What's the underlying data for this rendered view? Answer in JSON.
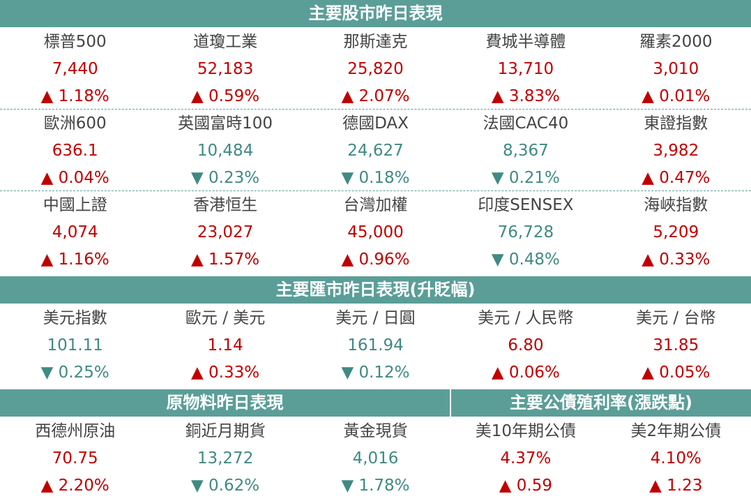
{
  "stocks": {
    "title": "主要股市昨日表現",
    "rows": [
      [
        {
          "name": "標普500",
          "value": "7,440",
          "change": "▲ 1.18%",
          "color": "#c00000"
        },
        {
          "name": "道瓊工業",
          "value": "52,183",
          "change": "▲ 0.59%",
          "color": "#c00000"
        },
        {
          "name": "那斯達克",
          "value": "25,820",
          "change": "▲ 2.07%",
          "color": "#c00000"
        },
        {
          "name": "費城半導體",
          "value": "13,710",
          "change": "▲ 3.83%",
          "color": "#c00000"
        },
        {
          "name": "羅素2000",
          "value": "3,010",
          "change": "▲ 0.01%",
          "color": "#c00000"
        }
      ],
      [
        {
          "name": "歐洲600",
          "value": "636.1",
          "change": "▲ 0.04%",
          "color": "#c00000"
        },
        {
          "name": "英國富時100",
          "value": "10,484",
          "change": "▼ 0.23%",
          "color": "#3f8a83"
        },
        {
          "name": "德國DAX",
          "value": "24,627",
          "change": "▼ 0.18%",
          "color": "#3f8a83"
        },
        {
          "name": "法國CAC40",
          "value": "8,367",
          "change": "▼ 0.21%",
          "color": "#3f8a83"
        },
        {
          "name": "東證指數",
          "value": "3,982",
          "change": "▲ 0.47%",
          "color": "#c00000"
        }
      ],
      [
        {
          "name": "中國上證",
          "value": "4,074",
          "change": "▲ 1.16%",
          "color": "#c00000"
        },
        {
          "name": "香港恒生",
          "value": "23,027",
          "change": "▲ 1.57%",
          "color": "#c00000"
        },
        {
          "name": "台灣加權",
          "value": "45,000",
          "change": "▲ 0.96%",
          "color": "#c00000"
        },
        {
          "name": "印度SENSEX",
          "value": "76,728",
          "change": "▼ 0.48%",
          "color": "#3f8a83"
        },
        {
          "name": "海峽指數",
          "value": "5,209",
          "change": "▲ 0.33%",
          "color": "#c00000"
        }
      ]
    ]
  },
  "fx": {
    "title": "主要匯市昨日表現(升貶幅)",
    "rows": [
      [
        {
          "name": "美元指數",
          "value": "101.11",
          "change": "▼ 0.25%",
          "color": "#3f8a83"
        },
        {
          "name": "歐元 / 美元",
          "value": "1.14",
          "change": "▲ 0.33%",
          "color": "#c00000"
        },
        {
          "name": "美元 / 日圓",
          "value": "161.94",
          "change": "▼ 0.12%",
          "color": "#3f8a83"
        },
        {
          "name": "美元 / 人民幣",
          "value": "6.80",
          "change": "▲ 0.06%",
          "color": "#c00000"
        },
        {
          "name": "美元 / 台幣",
          "value": "31.85",
          "change": "▲ 0.05%",
          "color": "#c00000"
        }
      ]
    ]
  },
  "commodities": {
    "title": "原物料昨日表現",
    "rows": [
      [
        {
          "name": "西德州原油",
          "value": "70.75",
          "change": "▲ 2.20%",
          "color": "#c00000"
        },
        {
          "name": "銅近月期貨",
          "value": "13,272",
          "change": "▼ 0.62%",
          "color": "#3f8a83"
        },
        {
          "name": "黃金現貨",
          "value": "4,016",
          "change": "▼ 1.78%",
          "color": "#3f8a83"
        }
      ]
    ]
  },
  "bonds": {
    "title": "主要公債殖利率(漲跌點)",
    "rows": [
      [
        {
          "name": "美10年期公債",
          "value": "4.37%",
          "change": "▲ 0.59",
          "color": "#c00000"
        },
        {
          "name": "美2年期公債",
          "value": "4.10%",
          "change": "▲ 1.23",
          "color": "#c00000"
        }
      ]
    ]
  }
}
